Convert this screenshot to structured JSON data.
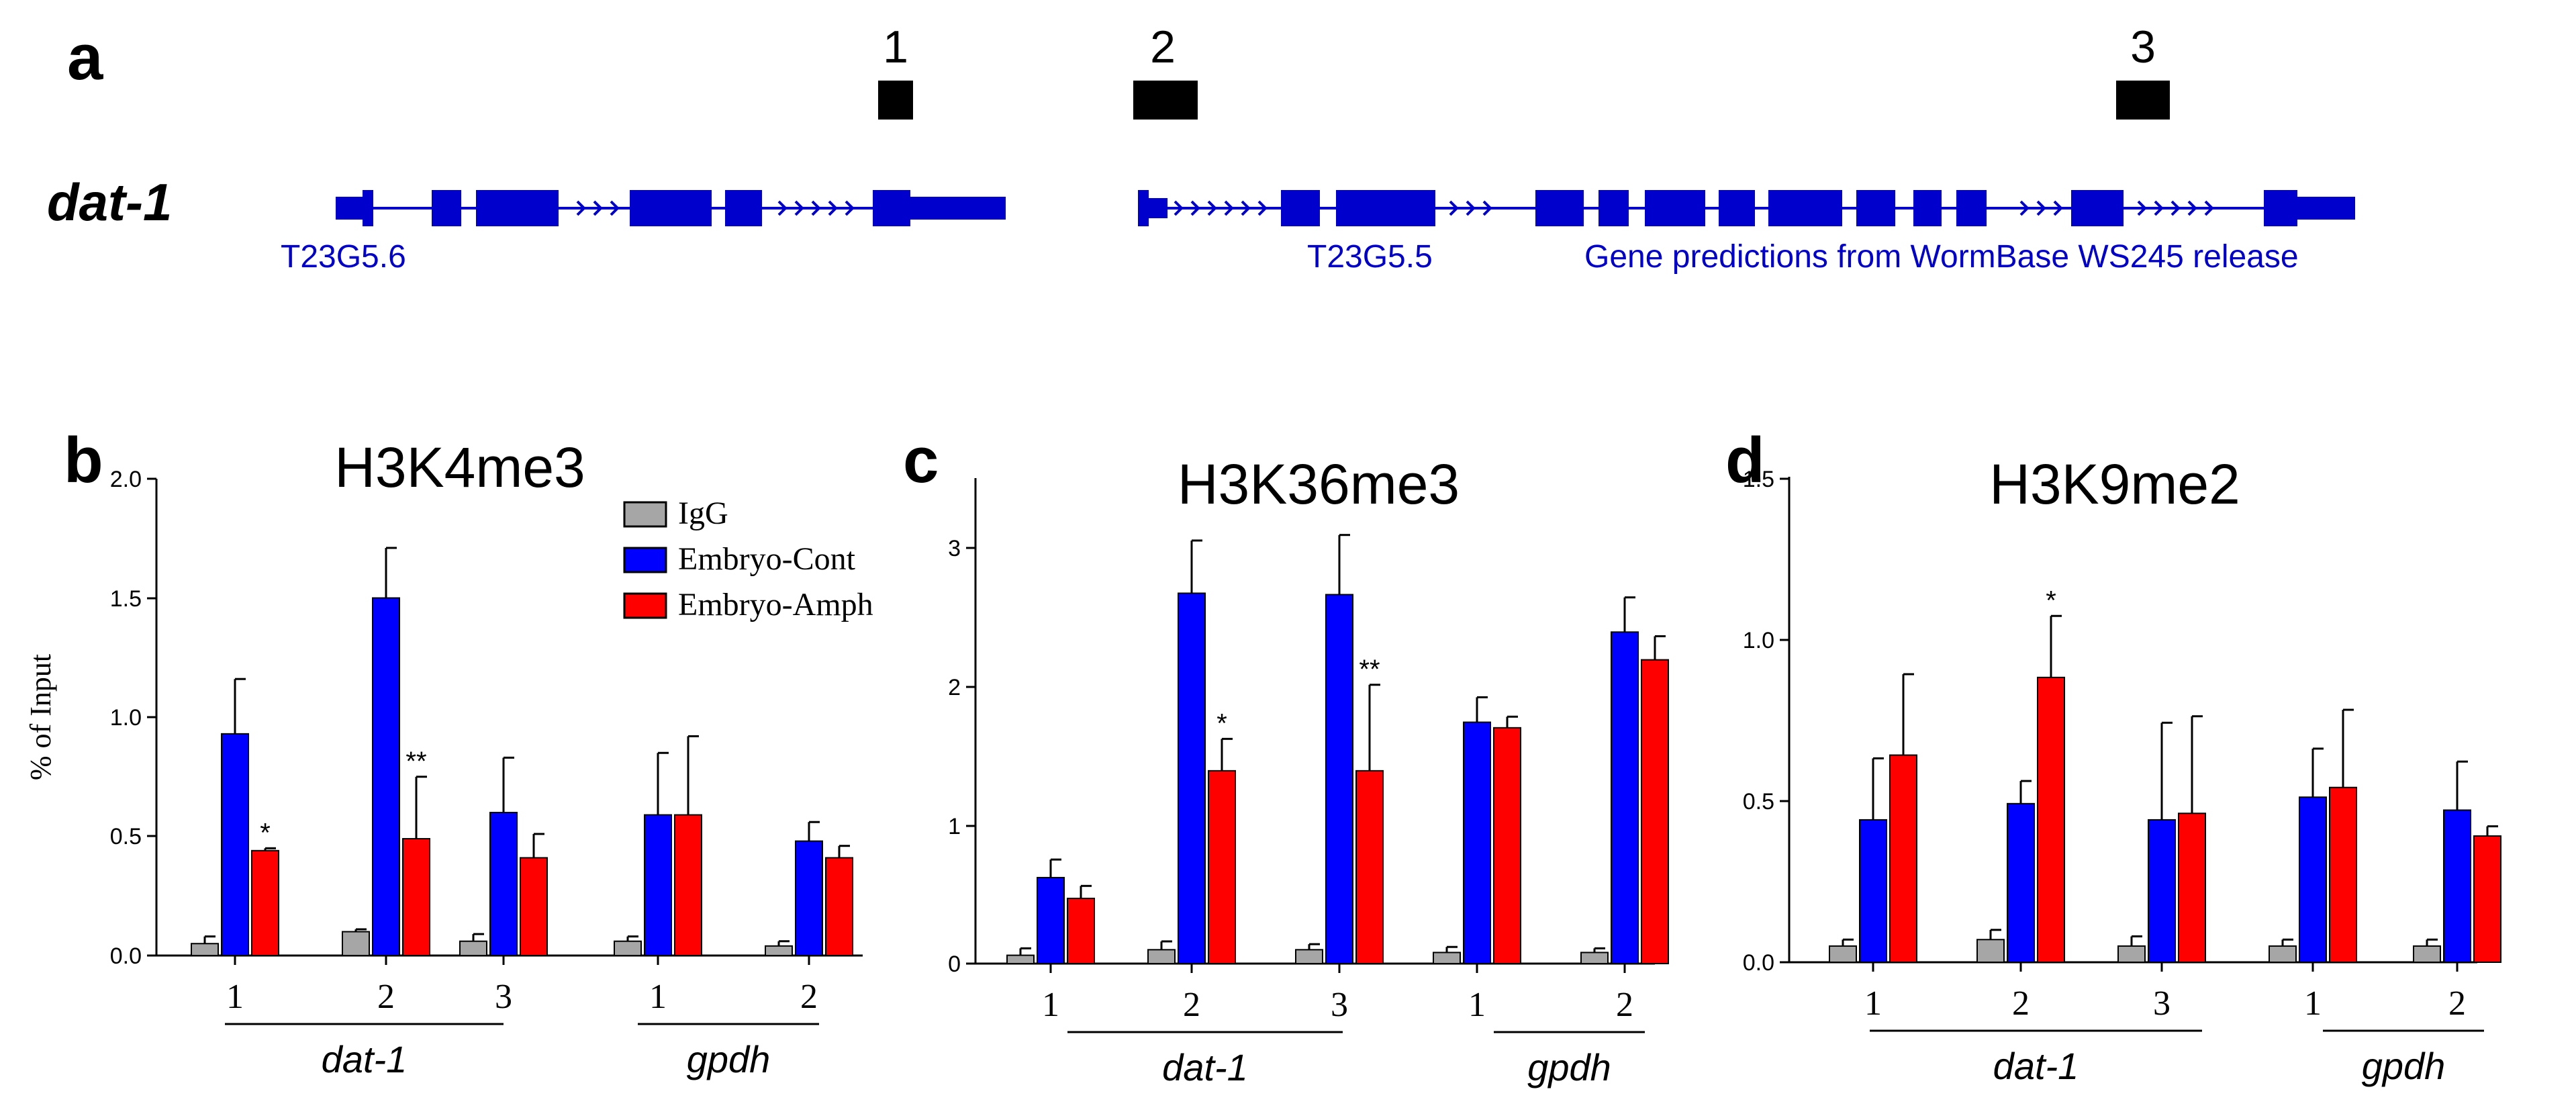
{
  "panel_a": {
    "label": "a",
    "gene_label": "dat-1",
    "gene1_label": "T23G5.6",
    "gene2_label": "T23G5.5",
    "source_label": "Gene predictions from WormBase WS245 release",
    "amplicons": [
      "1",
      "2",
      "3"
    ],
    "color": "#0000cc"
  },
  "legend": {
    "items": [
      {
        "name": "IgG",
        "color": "#a6a6a6"
      },
      {
        "name": "Embryo-Cont",
        "color": "#0000ff"
      },
      {
        "name": "Embryo-Amph",
        "color": "#ff0000"
      }
    ]
  },
  "chart_data": [
    {
      "label": "b",
      "type": "bar",
      "title": "H3K4me3",
      "ylabel": "% of Input",
      "xlabel": "",
      "ylim": [
        0,
        2.0
      ],
      "yticks": [
        "0.0",
        "0.5",
        "1.0",
        "1.5",
        "2.0"
      ],
      "categories": [
        "1",
        "2",
        "3",
        "1",
        "2"
      ],
      "groups": [
        {
          "name": "dat-1",
          "from": 0,
          "to": 2
        },
        {
          "name": "gpdh",
          "from": 3,
          "to": 4
        }
      ],
      "series": [
        {
          "name": "IgG",
          "values": [
            0.05,
            0.1,
            0.06,
            0.06,
            0.04
          ],
          "err": [
            0.03,
            0.01,
            0.03,
            0.02,
            0.02
          ]
        },
        {
          "name": "Embryo-Cont",
          "values": [
            0.93,
            1.5,
            0.6,
            0.59,
            0.48
          ],
          "err": [
            0.23,
            0.21,
            0.23,
            0.26,
            0.08
          ]
        },
        {
          "name": "Embryo-Amph",
          "values": [
            0.44,
            0.49,
            0.41,
            0.59,
            0.41
          ],
          "err": [
            0.01,
            0.26,
            0.1,
            0.33,
            0.05
          ]
        }
      ],
      "annotations": [
        {
          "category": 0,
          "series": 2,
          "text": "*"
        },
        {
          "category": 1,
          "series": 2,
          "text": "**"
        }
      ]
    },
    {
      "label": "c",
      "type": "bar",
      "title": "H3K36me3",
      "ylabel": "",
      "xlabel": "",
      "ylim": [
        0,
        3.5
      ],
      "yticks": [
        "0",
        "1",
        "2",
        "3"
      ],
      "categories": [
        "1",
        "2",
        "3",
        "1",
        "2"
      ],
      "groups": [
        {
          "name": "dat-1",
          "from": 0,
          "to": 2
        },
        {
          "name": "gpdh",
          "from": 3,
          "to": 4
        }
      ],
      "series": [
        {
          "name": "IgG",
          "values": [
            0.06,
            0.1,
            0.1,
            0.08,
            0.08
          ],
          "err": [
            0.05,
            0.06,
            0.04,
            0.04,
            0.03
          ]
        },
        {
          "name": "Embryo-Cont",
          "values": [
            0.62,
            2.67,
            2.66,
            1.74,
            2.39
          ],
          "err": [
            0.13,
            0.38,
            0.43,
            0.18,
            0.25
          ]
        },
        {
          "name": "Embryo-Amph",
          "values": [
            0.47,
            1.39,
            1.39,
            1.7,
            2.19
          ],
          "err": [
            0.09,
            0.23,
            0.62,
            0.08,
            0.17
          ]
        }
      ],
      "annotations": [
        {
          "category": 1,
          "series": 2,
          "text": "*"
        },
        {
          "category": 2,
          "series": 2,
          "text": "**"
        }
      ]
    },
    {
      "label": "d",
      "type": "bar",
      "title": "H3K9me2",
      "ylabel": "",
      "xlabel": "",
      "ylim": [
        0,
        1.5
      ],
      "yticks": [
        "0.0",
        "0.5",
        "1.0",
        "1.5"
      ],
      "categories": [
        "1",
        "2",
        "3",
        "1",
        "2"
      ],
      "groups": [
        {
          "name": "dat-1",
          "from": 0,
          "to": 2
        },
        {
          "name": "gpdh",
          "from": 3,
          "to": 4
        }
      ],
      "series": [
        {
          "name": "IgG",
          "values": [
            0.05,
            0.07,
            0.05,
            0.05,
            0.05
          ],
          "err": [
            0.02,
            0.03,
            0.03,
            0.02,
            0.02
          ]
        },
        {
          "name": "Embryo-Cont",
          "values": [
            0.44,
            0.49,
            0.44,
            0.51,
            0.47
          ],
          "err": [
            0.19,
            0.07,
            0.3,
            0.15,
            0.15
          ]
        },
        {
          "name": "Embryo-Amph",
          "values": [
            0.64,
            0.88,
            0.46,
            0.54,
            0.39
          ],
          "err": [
            0.25,
            0.19,
            0.3,
            0.24,
            0.03
          ]
        }
      ],
      "annotations": [
        {
          "category": 1,
          "series": 2,
          "text": "*"
        }
      ]
    }
  ]
}
